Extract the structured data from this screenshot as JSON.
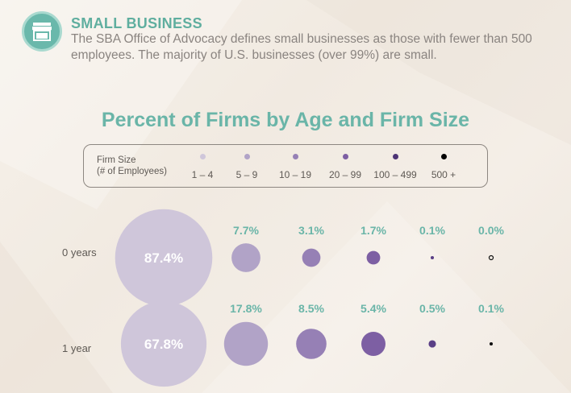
{
  "header": {
    "title": "SMALL BUSINESS",
    "description": "The SBA Office of Advocacy defines small businesses as those with fewer than 500 employees. The majority of U.S. businesses (over 99%) are small.",
    "icon": "storefront-icon"
  },
  "colors": {
    "accent": "#6ab5a8",
    "size_1_4": "#cfc6da",
    "size_5_9": "#b1a3c7",
    "size_10_19": "#9680b5",
    "size_20_99": "#7d5fa3",
    "size_100_499": "#5a3f86",
    "size_500_plus": "#111111"
  },
  "chart_data": {
    "type": "bubble",
    "title": "Percent of Firms by Age and Firm Size",
    "legend_title_line1": "Firm Size",
    "legend_title_line2": "(# of Employees)",
    "categories": [
      "1 – 4",
      "5 – 9",
      "10 – 19",
      "20 – 99",
      "100 – 499",
      "500 +"
    ],
    "rows": [
      {
        "label": "0 years",
        "values": [
          87.4,
          7.7,
          3.1,
          1.7,
          0.1,
          0.0
        ],
        "labels": [
          "87.4%",
          "7.7%",
          "3.1%",
          "1.7%",
          "0.1%",
          "0.0%"
        ]
      },
      {
        "label": "1 year",
        "values": [
          67.8,
          17.8,
          8.5,
          5.4,
          0.5,
          0.1
        ],
        "labels": [
          "67.8%",
          "17.8%",
          "8.5%",
          "5.4%",
          "0.5%",
          "0.1%"
        ]
      }
    ]
  }
}
